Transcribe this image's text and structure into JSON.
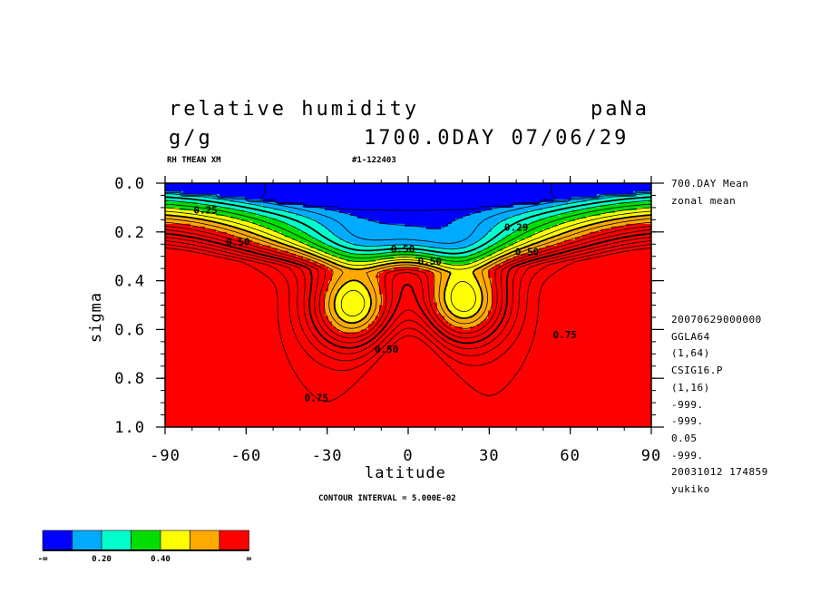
{
  "header": {
    "title_left": "relative humidity",
    "title_right": "paNa",
    "units": "g/g",
    "date": "1700.0DAY 07/06/29",
    "var_info": "RH TMEAN XM",
    "run_id": "#1-122403"
  },
  "right_info": {
    "mean_label": "700.DAY Mean",
    "zonal_label": "zonal mean",
    "meta_lines": [
      "20070629000000",
      "GGLA64",
      "(1,64)",
      "CSIG16.P",
      "(1,16)",
      "-999.",
      "-999.",
      "0.05",
      "-999.",
      "20031012 174859",
      "yukiko"
    ]
  },
  "footer": {
    "contour_interval": "CONTOUR INTERVAL = 5.000E-02"
  },
  "legend": {
    "colors": [
      "#0000ff",
      "#00aaff",
      "#00ffcc",
      "#00dd00",
      "#ffff00",
      "#ffaa00",
      "#ff0000"
    ],
    "labels": [
      "-∞",
      "0.20",
      "0.40",
      "∞"
    ]
  },
  "chart_data": {
    "type": "contour",
    "title": "relative humidity",
    "xlabel": "latitude",
    "ylabel": "sigma",
    "xlim": [
      -90,
      90
    ],
    "ylim": [
      1.0,
      0.0
    ],
    "x_ticks": [
      "-90",
      "-60",
      "-30",
      "0",
      "30",
      "60",
      "90"
    ],
    "y_ticks": [
      "0.0",
      "0.2",
      "0.4",
      "0.6",
      "0.8",
      "1.0"
    ],
    "contour_interval": 0.05,
    "contour_labels": [
      "0.25",
      "0.50",
      "0.50",
      "0.50",
      "0.50",
      "0.29",
      "0.50",
      "0.75",
      "0.75"
    ],
    "color_levels": [
      0.1,
      0.2,
      0.3,
      0.4,
      0.5,
      0.6
    ],
    "grid": false
  }
}
